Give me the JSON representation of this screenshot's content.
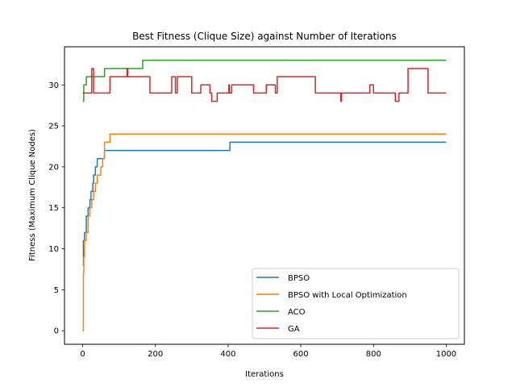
{
  "chart_data": {
    "type": "line",
    "title": "Best Fitness (Clique Size) against Number of Iterations",
    "xlabel": "Iterations",
    "ylabel": "Fitness (Maximum Clique Nodes)",
    "xlim": [
      -50,
      1050
    ],
    "ylim": [
      -1.65,
      34.65
    ],
    "xticks": [
      0,
      200,
      400,
      600,
      800,
      1000
    ],
    "yticks": [
      0,
      5,
      10,
      15,
      20,
      25,
      30
    ],
    "grid": false,
    "legend_position": "lower-right",
    "series": [
      {
        "name": "BPSO",
        "color": "#1f77b4",
        "x": [
          0,
          1,
          2,
          3,
          5,
          8,
          10,
          12,
          15,
          18,
          20,
          23,
          25,
          28,
          30,
          32,
          35,
          40,
          45,
          50,
          55,
          60,
          405,
          1000
        ],
        "y": [
          8,
          8,
          11,
          11,
          12,
          12,
          14,
          14,
          15,
          15,
          16,
          17,
          17,
          18,
          19,
          19,
          20,
          21,
          21,
          21,
          21,
          22,
          23,
          23
        ],
        "step": true
      },
      {
        "name": "BPSO with Local Optimization",
        "color": "#ff7f0e",
        "x": [
          0,
          1,
          2,
          3,
          5,
          10,
          15,
          20,
          25,
          30,
          35,
          40,
          50,
          55,
          60,
          70,
          75,
          80,
          1000
        ],
        "y": [
          0,
          0,
          7,
          9,
          11,
          12,
          14,
          15,
          16,
          17,
          18,
          19,
          20,
          21,
          23,
          23,
          24,
          24,
          24
        ],
        "step": true
      },
      {
        "name": "ACO",
        "color": "#2ca02c",
        "x": [
          0,
          3,
          10,
          20,
          30,
          40,
          50,
          60,
          100,
          165,
          200,
          1000
        ],
        "y": [
          28,
          30,
          31,
          31,
          31,
          31,
          31,
          32,
          32,
          33,
          33,
          33
        ],
        "step": true
      },
      {
        "name": "GA",
        "color": "#d62728",
        "x": [
          0,
          10,
          20,
          25,
          30,
          35,
          40,
          50,
          70,
          75,
          120,
          122,
          124,
          126,
          185,
          220,
          245,
          255,
          260,
          270,
          300,
          325,
          340,
          350,
          355,
          370,
          380,
          400,
          402,
          404,
          410,
          460,
          470,
          500,
          505,
          530,
          535,
          630,
          640,
          700,
          708,
          710,
          712,
          720,
          770,
          790,
          800,
          855,
          860,
          870,
          895,
          945,
          950,
          1000
        ],
        "y": [
          29,
          29,
          29,
          32,
          29,
          29,
          29,
          29,
          29,
          31,
          31,
          32,
          31,
          31,
          29,
          29,
          31,
          29,
          31,
          31,
          29,
          30,
          30,
          29,
          28,
          29,
          29,
          29,
          30,
          29,
          30,
          30,
          29,
          29,
          30,
          29,
          31,
          31,
          29,
          29,
          29,
          28,
          29,
          29,
          29,
          30,
          29,
          29,
          28,
          29,
          32,
          32,
          29,
          29
        ],
        "step": true
      }
    ]
  }
}
